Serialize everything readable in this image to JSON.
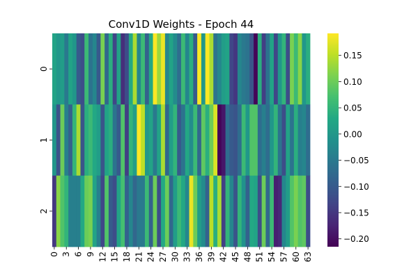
{
  "chart_data": {
    "type": "heatmap",
    "title": "Conv1D Weights - Epoch 44",
    "xlabel": "",
    "ylabel": "",
    "colormap": "viridis",
    "vmin": -0.215,
    "vmax": 0.192,
    "rows": [
      "0",
      "1",
      "2"
    ],
    "columns": 64,
    "x_tick_labels": [
      "0",
      "3",
      "6",
      "9",
      "12",
      "15",
      "18",
      "21",
      "24",
      "27",
      "30",
      "33",
      "36",
      "39",
      "42",
      "45",
      "48",
      "51",
      "54",
      "57",
      "60",
      "63"
    ],
    "colorbar_ticks": [
      0.15,
      0.1,
      0.05,
      0.0,
      -0.05,
      -0.1,
      -0.15,
      -0.2
    ],
    "colorbar_tick_labels": [
      "0.15",
      "0.10",
      "0.05",
      "0.00",
      "−0.05",
      "−0.10",
      "−0.15",
      "−0.20"
    ],
    "values": [
      [
        0.02,
        0.0,
        0.01,
        -0.05,
        0.02,
        0.0,
        -0.1,
        -0.12,
        0.06,
        -0.06,
        -0.03,
        -0.1,
        0.11,
        -0.08,
        0.04,
        -0.13,
        0.02,
        -0.16,
        -0.12,
        0.03,
        0.14,
        -0.03,
        0.06,
        -0.09,
        0.03,
        0.19,
        0.13,
        0.18,
        -0.03,
        0.02,
        -0.02,
        -0.07,
        0.06,
        -0.03,
        0.04,
        -0.1,
        0.19,
        0.0,
        0.19,
        0.14,
        -0.06,
        -0.03,
        0.01,
        0.02,
        -0.13,
        -0.15,
        -0.03,
        -0.05,
        -0.06,
        -0.11,
        -0.21,
        0.04,
        -0.14,
        -0.06,
        0.02,
        -0.13,
        0.0,
        0.05,
        -0.12,
        0.11,
        0.06,
        0.12,
        0.0,
        0.04
      ],
      [
        0.0,
        -0.11,
        0.1,
        -0.04,
        -0.09,
        0.05,
        0.14,
        -0.11,
        0.04,
        0.06,
        0.03,
        0.01,
        -0.11,
        0.02,
        0.04,
        -0.06,
        -0.1,
        0.08,
        -0.14,
        0.05,
        0.01,
        0.19,
        0.15,
        0.0,
        0.02,
        -0.05,
        0.02,
        0.14,
        -0.08,
        0.01,
        0.05,
        -0.1,
        -0.06,
        0.03,
        -0.02,
        0.06,
        -0.08,
        0.09,
        0.04,
        0.1,
        0.17,
        -0.21,
        -0.19,
        -0.07,
        -0.1,
        -0.11,
        -0.07,
        0.06,
        0.0,
        0.08,
        0.08,
        -0.07,
        -0.04,
        -0.07,
        0.0,
        0.05,
        -0.06,
        -0.12,
        0.02,
        -0.06,
        0.04,
        -0.04,
        -0.03,
        -0.07
      ],
      [
        -0.15,
        0.12,
        0.08,
        0.05,
        -0.04,
        -0.04,
        -0.04,
        0.03,
        0.1,
        0.11,
        0.02,
        -0.04,
        -0.13,
        0.08,
        -0.1,
        -0.12,
        0.02,
        0.07,
        -0.09,
        -0.03,
        -0.08,
        -0.05,
        -0.05,
        0.06,
        -0.09,
        0.1,
        -0.12,
        0.03,
        0.1,
        -0.08,
        0.01,
        0.06,
        0.03,
        -0.03,
        0.18,
        0.1,
        0.01,
        -0.02,
        -0.09,
        0.15,
        0.04,
        0.14,
        -0.14,
        0.05,
        -0.03,
        -0.11,
        0.05,
        -0.01,
        -0.09,
        0.03,
        0.02,
        -0.12,
        0.1,
        -0.08,
        0.06,
        -0.18,
        -0.17,
        -0.03,
        0.01,
        0.08,
        0.11,
        0.08,
        0.09,
        -0.12
      ]
    ]
  }
}
